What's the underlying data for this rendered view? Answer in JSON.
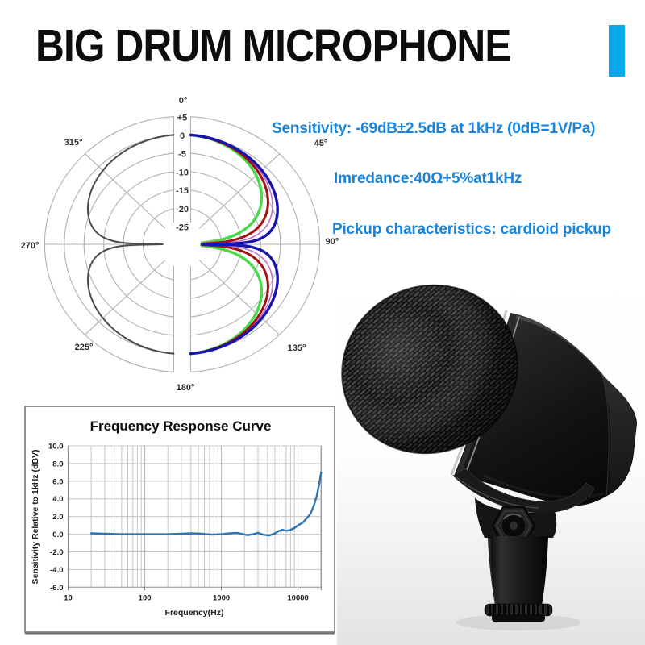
{
  "header": {
    "title": "BIG DRUM MICROPHONE",
    "accent_color": "#0ba7e9"
  },
  "specs": {
    "color": "#1b83d9",
    "lines": [
      "Sensitivity: -69dB±2.5dB at 1kHz (0dB=1V/Pa)",
      "Imredance:40Ω+5%at1kHz",
      "Pickup characteristics: cardioid pickup"
    ]
  },
  "chart_data": [
    {
      "type": "polar",
      "name": "pickup polar pattern",
      "angle_ticks": [
        "0°",
        "45°",
        "90°",
        "135°",
        "180°",
        "225°",
        "270°",
        "315°"
      ],
      "radial_ticks_db": [
        "+5",
        "0",
        "-5",
        "-10",
        "-15",
        "-20",
        "-25"
      ],
      "radial_range_db": [
        5,
        -25
      ],
      "model": "r_dB(theta) = A * 20*log10(cos(theta)), clamped at -25 dB; upper lobe mirrored to lower lobe",
      "grid_color": "#b0b0b0",
      "label_color": "#2e2e2e",
      "series": [
        {
          "name": "left lobe gray",
          "color": "#4b4b4b",
          "width": 2,
          "A": 0.48,
          "side": -1
        },
        {
          "name": "magenta",
          "color": "#c36fd2",
          "width": 1.6,
          "A": 0.62,
          "side": 1
        },
        {
          "name": "green",
          "color": "#49d84b",
          "width": 3.4,
          "A": 1.12,
          "side": 1
        },
        {
          "name": "red",
          "color": "#a31111",
          "width": 3,
          "A": 0.8,
          "side": 1
        },
        {
          "name": "blue",
          "color": "#1813ae",
          "width": 3.4,
          "A": 0.45,
          "side": 1
        }
      ]
    },
    {
      "type": "line",
      "title": "Frequency Response Curve",
      "xlabel": "Frequency(Hz)",
      "ylabel": "Sensitivity Relative to 1kHz (dBV)",
      "x_scale": "log",
      "xlim": [
        10,
        20000
      ],
      "ylim": [
        -6,
        10
      ],
      "x_ticks": [
        10,
        100,
        1000,
        10000
      ],
      "y_ticks": [
        "10.0",
        "8.0",
        "6.0",
        "4.0",
        "2.0",
        "0.0",
        "-2.0",
        "-4.0",
        "-6.0"
      ],
      "line_color": "#2e74b5",
      "grid_color": "#c6c6c6",
      "axis_color": "#8f8f8f",
      "points": [
        [
          20,
          0.1
        ],
        [
          30,
          0.05
        ],
        [
          50,
          0
        ],
        [
          80,
          0
        ],
        [
          120,
          0
        ],
        [
          200,
          0
        ],
        [
          300,
          0.05
        ],
        [
          420,
          0.1
        ],
        [
          550,
          0.05
        ],
        [
          750,
          -0.05
        ],
        [
          1000,
          0
        ],
        [
          1300,
          0.1
        ],
        [
          1600,
          0.15
        ],
        [
          1900,
          0
        ],
        [
          2200,
          -0.1
        ],
        [
          2600,
          0
        ],
        [
          3000,
          0.15
        ],
        [
          3500,
          -0.05
        ],
        [
          4200,
          -0.15
        ],
        [
          5000,
          0.1
        ],
        [
          5600,
          0.35
        ],
        [
          6300,
          0.5
        ],
        [
          7000,
          0.38
        ],
        [
          7800,
          0.45
        ],
        [
          8800,
          0.65
        ],
        [
          10000,
          1.0
        ],
        [
          11500,
          1.3
        ],
        [
          13000,
          1.8
        ],
        [
          14500,
          2.3
        ],
        [
          16000,
          3.2
        ],
        [
          17500,
          4.3
        ],
        [
          19000,
          5.8
        ],
        [
          20000,
          7.0
        ]
      ]
    }
  ],
  "microphone_photo": {
    "description": "black kick-drum microphone with woven mesh grille head and stand mount clamp"
  }
}
